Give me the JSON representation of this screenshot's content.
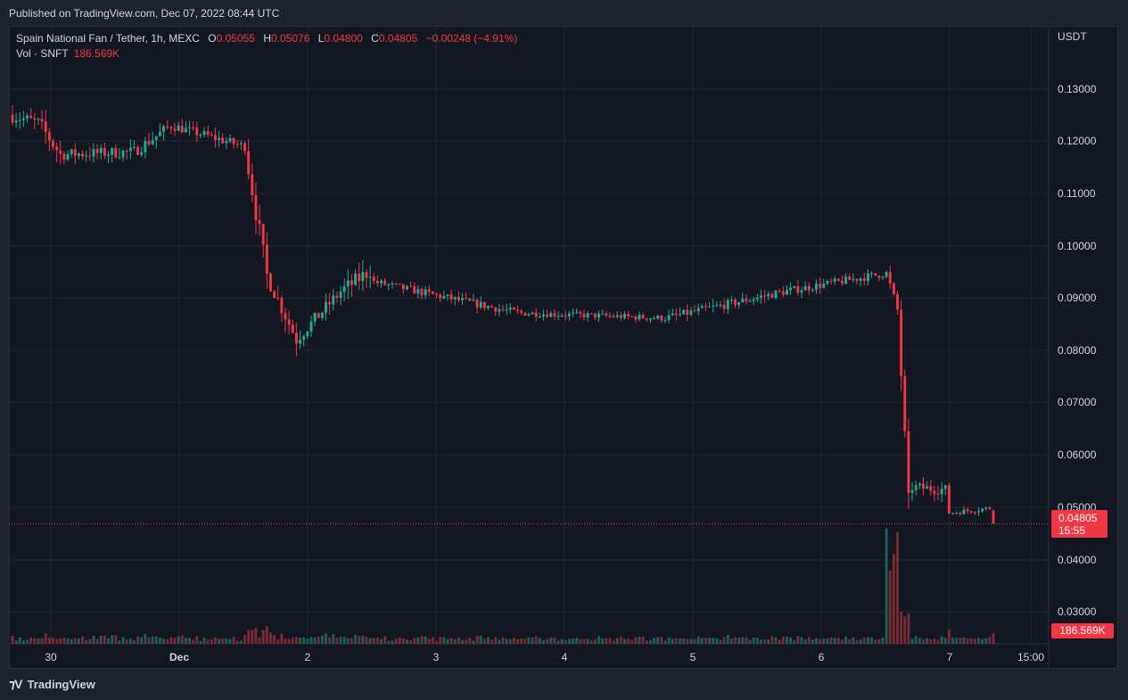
{
  "header": {
    "published": "Published on TradingView.com, Dec 07, 2022 08:44 UTC"
  },
  "legend": {
    "symbol": "Spain National Fan / Tether, 1h, MEXC",
    "open_label": "O",
    "open": "0.05055",
    "high_label": "H",
    "high": "0.05076",
    "low_label": "L",
    "low": "0.04800",
    "close_label": "C",
    "close": "0.04805",
    "change": "−0.00248 (−4.91%)",
    "vol_label": "Vol · SNFT",
    "vol_value": "186.569K"
  },
  "price_tag": {
    "price": "0.04805",
    "countdown": "15:55"
  },
  "volume_tag": "186.569K",
  "footer": {
    "brand": "TradingView"
  },
  "colors": {
    "up": "#22ab94",
    "down": "#f23645",
    "up_vol": "#1f5f5a",
    "down_vol": "#7a2b33",
    "grid": "#232734",
    "axis_text": "#d1d4dc"
  },
  "chart_data": {
    "type": "candlestick",
    "currency_label": "USDT",
    "y_ticks": [
      "0.13000",
      "0.12000",
      "0.11000",
      "0.10000",
      "0.09000",
      "0.08000",
      "0.07000",
      "0.06000",
      "0.05000",
      "0.04000",
      "0.03000"
    ],
    "x_ticks": [
      "30",
      "Dec",
      "2",
      "3",
      "4",
      "5",
      "6",
      "7",
      "15:00"
    ],
    "ylim": [
      0.0253,
      0.1422
    ],
    "last_price": 0.04805,
    "segments": [
      {
        "n": 8,
        "start": 0.1255,
        "end": 0.124,
        "noise": 0.0025
      },
      {
        "n": 6,
        "start": 0.124,
        "end": 0.118,
        "noise": 0.003
      },
      {
        "n": 20,
        "start": 0.118,
        "end": 0.1185,
        "noise": 0.0022
      },
      {
        "n": 10,
        "start": 0.1185,
        "end": 0.1235,
        "noise": 0.0022
      },
      {
        "n": 20,
        "start": 0.1235,
        "end": 0.1195,
        "noise": 0.0018
      },
      {
        "n": 6,
        "start": 0.1195,
        "end": 0.095,
        "noise": 0.004
      },
      {
        "n": 8,
        "start": 0.095,
        "end": 0.083,
        "noise": 0.003
      },
      {
        "n": 12,
        "start": 0.083,
        "end": 0.092,
        "noise": 0.0025
      },
      {
        "n": 8,
        "start": 0.092,
        "end": 0.096,
        "noise": 0.003
      },
      {
        "n": 40,
        "start": 0.094,
        "end": 0.088,
        "noise": 0.0015
      },
      {
        "n": 40,
        "start": 0.088,
        "end": 0.087,
        "noise": 0.0012
      },
      {
        "n": 32,
        "start": 0.087,
        "end": 0.092,
        "noise": 0.0016
      },
      {
        "n": 28,
        "start": 0.092,
        "end": 0.0955,
        "noise": 0.0015
      },
      {
        "n": 3,
        "start": 0.0955,
        "end": 0.0885,
        "noise": 0.002
      },
      {
        "n": 3,
        "start": 0.0885,
        "end": 0.052,
        "noise": 0.004
      },
      {
        "n": 10,
        "start": 0.055,
        "end": 0.0545,
        "noise": 0.002
      },
      {
        "n": 12,
        "start": 0.05,
        "end": 0.051,
        "noise": 0.001
      },
      {
        "n": 1,
        "start": 0.05055,
        "end": 0.04805,
        "noise": 0.0003
      }
    ]
  }
}
